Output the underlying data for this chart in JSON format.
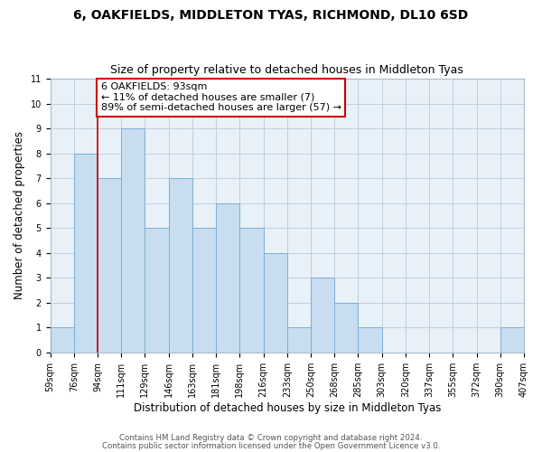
{
  "title": "6, OAKFIELDS, MIDDLETON TYAS, RICHMOND, DL10 6SD",
  "subtitle": "Size of property relative to detached houses in Middleton Tyas",
  "xlabel": "Distribution of detached houses by size in Middleton Tyas",
  "ylabel": "Number of detached properties",
  "bin_labels": [
    "59sqm",
    "76sqm",
    "94sqm",
    "111sqm",
    "129sqm",
    "146sqm",
    "163sqm",
    "181sqm",
    "198sqm",
    "216sqm",
    "233sqm",
    "250sqm",
    "268sqm",
    "285sqm",
    "303sqm",
    "320sqm",
    "337sqm",
    "355sqm",
    "372sqm",
    "390sqm",
    "407sqm"
  ],
  "counts": [
    1,
    8,
    7,
    9,
    5,
    7,
    5,
    6,
    5,
    4,
    1,
    3,
    2,
    1,
    0,
    0,
    0,
    0,
    0,
    1
  ],
  "bar_color": "#c8ddf0",
  "bar_edge_color": "#7bafd4",
  "marker_bin_index": 2,
  "marker_line_color": "#cc0000",
  "ylim": [
    0,
    11
  ],
  "yticks": [
    0,
    1,
    2,
    3,
    4,
    5,
    6,
    7,
    8,
    9,
    10,
    11
  ],
  "annotation_title": "6 OAKFIELDS: 93sqm",
  "annotation_line1": "← 11% of detached houses are smaller (7)",
  "annotation_line2": "89% of semi-detached houses are larger (57) →",
  "annotation_box_color": "#ffffff",
  "annotation_box_edge_color": "#cc0000",
  "footer1": "Contains HM Land Registry data © Crown copyright and database right 2024.",
  "footer2": "Contains public sector information licensed under the Open Government Licence v3.0.",
  "background_color": "#ffffff",
  "plot_bg_color": "#e8f0f8",
  "grid_color": "#c0cfe0",
  "title_fontsize": 10,
  "subtitle_fontsize": 9,
  "axis_label_fontsize": 8.5,
  "tick_fontsize": 7,
  "annotation_fontsize": 8
}
